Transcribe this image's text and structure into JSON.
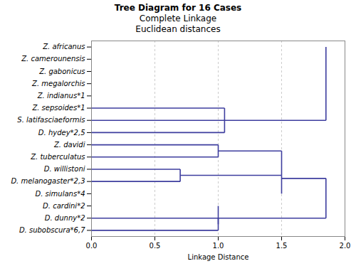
{
  "chart_data": {
    "type": "dendrogram",
    "title": "Tree Diagram for 16 Cases\nComplete Linkage\nEuclidean distances",
    "xlabel": "Linkage Distance",
    "color": "#3d3d9e",
    "grid": "x",
    "xlim": [
      0.0,
      2.0
    ],
    "xticks": [
      {
        "value": 0.0,
        "label": "0.0"
      },
      0.5,
      {
        "value": 1.0,
        "label": "1.0"
      },
      1.5,
      {
        "value": 2.0,
        "label": "2.0"
      }
    ],
    "ylim": [
      -0.5,
      15.5
    ],
    "yticks": [
      {
        "value": 15,
        "label": "Z. africanus"
      },
      {
        "value": 14,
        "label": "Z. camerounensis"
      },
      {
        "value": 13,
        "label": "Z. gabonicus"
      },
      {
        "value": 12,
        "label": "Z. megalorchis"
      },
      {
        "value": 11,
        "label": "Z. indianus*1"
      },
      {
        "value": 10,
        "label": "Z. sepsoides*1"
      },
      {
        "value": 9,
        "label": "S. latifasciaeformis"
      },
      {
        "value": 8,
        "label": "D. hydey*2,5"
      },
      {
        "value": 7,
        "label": "Z. davidi"
      },
      {
        "value": 6,
        "label": "Z. tuberculatus"
      },
      {
        "value": 5,
        "label": "D. willistoni"
      },
      {
        "value": 4,
        "label": "D. melanogaster*2,3"
      },
      {
        "value": 3,
        "label": "D. simulans*4"
      },
      {
        "value": 2,
        "label": "D. cardini*2"
      },
      {
        "value": 1,
        "label": "D. dunny*2"
      },
      {
        "value": 0,
        "label": "D. subobscura*6,7"
      }
    ],
    "segments": [
      {
        "x": [
          0,
          1.05
        ],
        "y": [
          10,
          10
        ]
      },
      {
        "x": [
          0,
          1.05
        ],
        "y": [
          9,
          9
        ]
      },
      {
        "x": [
          0,
          1.05
        ],
        "y": [
          8,
          8
        ]
      },
      {
        "x": [
          1.05,
          1.05
        ],
        "y": [
          8,
          10
        ]
      },
      {
        "x": [
          1.05,
          1.85
        ],
        "y": [
          9,
          9
        ]
      },
      {
        "x": [
          1.85,
          1.85
        ],
        "y": [
          9,
          15
        ]
      },
      {
        "x": [
          0,
          1.0
        ],
        "y": [
          7,
          7
        ]
      },
      {
        "x": [
          0,
          1.0
        ],
        "y": [
          6,
          6
        ]
      },
      {
        "x": [
          1.0,
          1.0
        ],
        "y": [
          6,
          7
        ]
      },
      {
        "x": [
          0,
          0.7
        ],
        "y": [
          5,
          5
        ]
      },
      {
        "x": [
          0,
          0.7
        ],
        "y": [
          4,
          4
        ]
      },
      {
        "x": [
          0.7,
          0.7
        ],
        "y": [
          4,
          5
        ]
      },
      {
        "x": [
          1.0,
          1.5
        ],
        "y": [
          6.5,
          6.5
        ]
      },
      {
        "x": [
          0.7,
          1.5
        ],
        "y": [
          4.5,
          4.5
        ]
      },
      {
        "x": [
          1.5,
          1.5
        ],
        "y": [
          4.5,
          6.5
        ]
      },
      {
        "x": [
          1.5,
          1.5
        ],
        "y": [
          3,
          4.5
        ]
      },
      {
        "x": [
          0,
          1.0
        ],
        "y": [
          1,
          1
        ]
      },
      {
        "x": [
          0,
          1.0
        ],
        "y": [
          0,
          0
        ]
      },
      {
        "x": [
          1.0,
          1.0
        ],
        "y": [
          0,
          1
        ]
      },
      {
        "x": [
          1.0,
          1.0
        ],
        "y": [
          0.5,
          2
        ]
      },
      {
        "x": [
          1.5,
          1.85
        ],
        "y": [
          4.25,
          4.25
        ]
      },
      {
        "x": [
          1.0,
          1.85
        ],
        "y": [
          1,
          1
        ]
      },
      {
        "x": [
          1.85,
          1.85
        ],
        "y": [
          1,
          4.25
        ]
      }
    ]
  }
}
